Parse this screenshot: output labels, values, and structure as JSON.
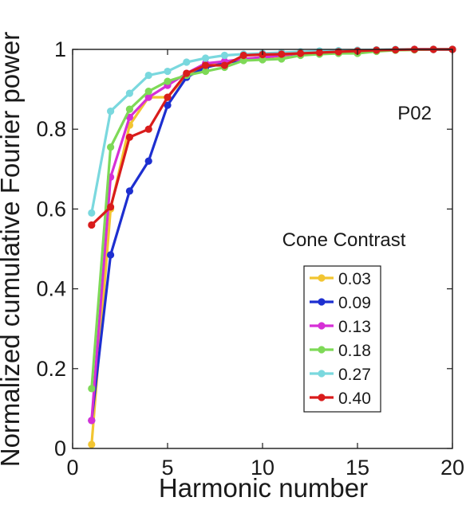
{
  "chart_data": {
    "type": "line",
    "title": "",
    "xlabel": "Harmonic number",
    "ylabel": "Normalized cumulative Fourier power",
    "xlim": [
      0,
      20
    ],
    "ylim": [
      0,
      1
    ],
    "xticks": [
      0,
      5,
      10,
      15,
      20
    ],
    "yticks": [
      0,
      0.2,
      0.4,
      0.6,
      0.8,
      1
    ],
    "ytick_labels": [
      "0",
      "0.2",
      "0.4",
      "0.6",
      "0.8",
      "1"
    ],
    "grid": false,
    "annotation": "P02",
    "legend_title": "Cone Contrast",
    "legend_position": "lower-right",
    "x": [
      1,
      2,
      3,
      4,
      5,
      6,
      7,
      8,
      9,
      10,
      11,
      12,
      13,
      14,
      15,
      16,
      17,
      18,
      19,
      20
    ],
    "series": [
      {
        "name": "0.03",
        "color": "#f2c531",
        "values": [
          0.01,
          0.6,
          0.81,
          0.88,
          0.88,
          0.935,
          0.96,
          0.968,
          0.974,
          0.978,
          0.982,
          0.986,
          0.99,
          0.993,
          0.995,
          0.997,
          0.998,
          0.999,
          1.0,
          1.0
        ]
      },
      {
        "name": "0.09",
        "color": "#1d2fd0",
        "values": [
          0.07,
          0.485,
          0.645,
          0.72,
          0.86,
          0.93,
          0.955,
          0.965,
          0.975,
          0.98,
          0.985,
          0.99,
          0.993,
          0.995,
          0.997,
          0.998,
          0.999,
          1.0,
          1.0,
          1.0
        ]
      },
      {
        "name": "0.13",
        "color": "#d62fd6",
        "values": [
          0.07,
          0.68,
          0.83,
          0.88,
          0.91,
          0.94,
          0.965,
          0.97,
          0.976,
          0.98,
          0.985,
          0.99,
          0.993,
          0.996,
          0.997,
          0.998,
          0.999,
          1.0,
          1.0,
          1.0
        ]
      },
      {
        "name": "0.18",
        "color": "#7ed957",
        "values": [
          0.15,
          0.755,
          0.85,
          0.895,
          0.92,
          0.935,
          0.945,
          0.955,
          0.972,
          0.974,
          0.976,
          0.985,
          0.988,
          0.99,
          0.99,
          0.995,
          0.998,
          0.999,
          1.0,
          1.0
        ]
      },
      {
        "name": "0.27",
        "color": "#7ad8de",
        "values": [
          0.59,
          0.845,
          0.89,
          0.935,
          0.945,
          0.968,
          0.978,
          0.985,
          0.988,
          0.99,
          0.992,
          0.994,
          0.996,
          0.997,
          0.998,
          0.999,
          1.0,
          1.0,
          1.0,
          1.0
        ]
      },
      {
        "name": "0.40",
        "color": "#d91c1c",
        "values": [
          0.56,
          0.605,
          0.78,
          0.8,
          0.88,
          0.94,
          0.96,
          0.96,
          0.985,
          0.987,
          0.988,
          0.99,
          0.992,
          0.994,
          0.996,
          0.998,
          0.999,
          1.0,
          1.0,
          1.0
        ]
      }
    ]
  }
}
